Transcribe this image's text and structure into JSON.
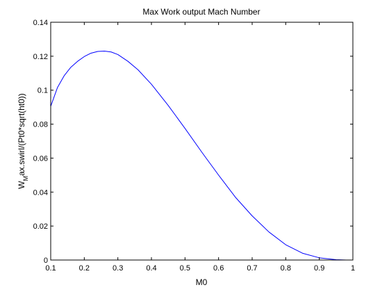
{
  "chart_data": {
    "type": "line",
    "title": "Max Work output Mach Number",
    "xlabel": "M0",
    "ylabel": {
      "base": "W",
      "sub": "M",
      "rest": "ax.swirl/(Pt0*sqrt(ht0))"
    },
    "xlim": [
      0.1,
      1.0
    ],
    "ylim": [
      0,
      0.14
    ],
    "xticks": [
      0.1,
      0.2,
      0.3,
      0.4,
      0.5,
      0.6,
      0.7,
      0.8,
      0.9,
      1.0
    ],
    "xtick_labels": [
      "0.1",
      "0.2",
      "0.3",
      "0.4",
      "0.5",
      "0.6",
      "0.7",
      "0.8",
      "0.9",
      "1"
    ],
    "yticks": [
      0,
      0.02,
      0.04,
      0.06,
      0.08,
      0.1,
      0.12,
      0.14
    ],
    "ytick_labels": [
      "0",
      "0.02",
      "0.04",
      "0.06",
      "0.08",
      "0.1",
      "0.12",
      "0.14"
    ],
    "grid": false,
    "legend": "none",
    "line_color": "#0000ff",
    "series": [
      {
        "x": [
          0.1,
          0.12,
          0.14,
          0.16,
          0.18,
          0.2,
          0.22,
          0.24,
          0.26,
          0.28,
          0.3,
          0.33,
          0.36,
          0.4,
          0.45,
          0.5,
          0.55,
          0.6,
          0.65,
          0.7,
          0.75,
          0.8,
          0.85,
          0.9,
          0.95,
          0.98,
          1.0
        ],
        "y": [
          0.0905,
          0.1015,
          0.1085,
          0.1135,
          0.117,
          0.1198,
          0.1218,
          0.1228,
          0.123,
          0.1225,
          0.121,
          0.117,
          0.112,
          0.1035,
          0.091,
          0.0775,
          0.0635,
          0.05,
          0.037,
          0.026,
          0.0165,
          0.009,
          0.004,
          0.0013,
          0.0002,
          2e-05,
          0.0
        ]
      }
    ]
  }
}
